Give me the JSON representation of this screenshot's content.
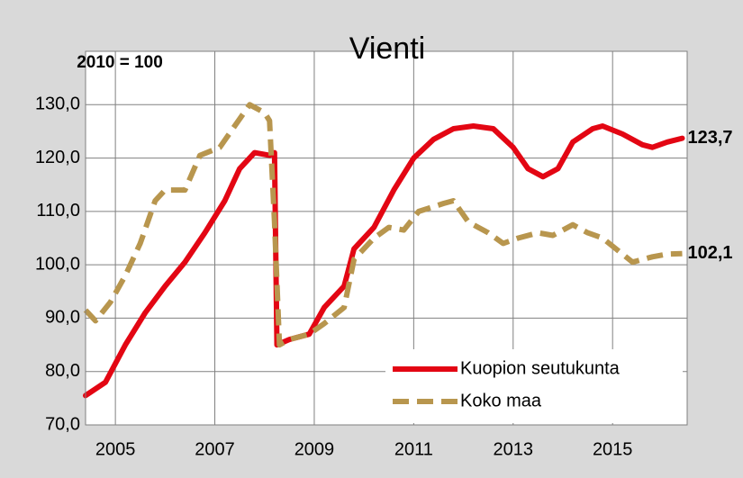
{
  "chart_data": {
    "type": "line",
    "title": "Vienti",
    "annotation": "2010 = 100",
    "xlim": [
      2004.4,
      2016.5
    ],
    "xticks": [
      2005,
      2007,
      2009,
      2011,
      2013,
      2015
    ],
    "ylim": [
      70,
      140
    ],
    "yticks": [
      {
        "value": 70,
        "label": "70,0"
      },
      {
        "value": 80,
        "label": "80,0"
      },
      {
        "value": 90,
        "label": "90,0"
      },
      {
        "value": 100,
        "label": "100,0"
      },
      {
        "value": 110,
        "label": "110,0"
      },
      {
        "value": 120,
        "label": "120,0"
      },
      {
        "value": 130,
        "label": "130,0"
      }
    ],
    "grid": true,
    "legend": "lower right",
    "series": [
      {
        "name": "Kuopion seutukunta",
        "color": "#e30613",
        "dash": false,
        "end_label": "123,7",
        "x": [
          2004.4,
          2004.8,
          2005.2,
          2005.6,
          2006.0,
          2006.4,
          2006.8,
          2007.2,
          2007.5,
          2007.8,
          2008.1,
          2008.2,
          2008.25,
          2008.5,
          2008.9,
          2009.2,
          2009.6,
          2009.8,
          2010.2,
          2010.6,
          2011.0,
          2011.4,
          2011.8,
          2012.2,
          2012.6,
          2013.0,
          2013.3,
          2013.6,
          2013.9,
          2014.2,
          2014.6,
          2014.8,
          2015.2,
          2015.6,
          2015.8,
          2016.1,
          2016.4
        ],
        "values": [
          75.5,
          78,
          85,
          91,
          96,
          100.5,
          106,
          112,
          118,
          121,
          120.5,
          121,
          85,
          86,
          87,
          92,
          96,
          103,
          107,
          114,
          120,
          123.5,
          125.5,
          126,
          125.5,
          122,
          118,
          116.5,
          118,
          123,
          125.5,
          126,
          124.5,
          122.5,
          122,
          123,
          123.7
        ]
      },
      {
        "name": "Koko maa",
        "color": "#b8964e",
        "dash": true,
        "end_label": "102,1",
        "x": [
          2004.4,
          2004.6,
          2004.9,
          2005.2,
          2005.5,
          2005.8,
          2006.0,
          2006.4,
          2006.7,
          2007.1,
          2007.4,
          2007.7,
          2008.0,
          2008.1,
          2008.2,
          2008.3,
          2008.5,
          2008.9,
          2009.2,
          2009.6,
          2009.8,
          2010.2,
          2010.5,
          2010.8,
          2011.1,
          2011.6,
          2011.8,
          2012.1,
          2012.5,
          2012.8,
          2013.1,
          2013.5,
          2013.8,
          2014.2,
          2014.5,
          2014.8,
          2015.2,
          2015.4,
          2015.8,
          2016.1,
          2016.4
        ],
        "values": [
          91.5,
          89.5,
          93,
          98,
          104,
          112,
          114,
          114,
          120.5,
          122,
          126,
          130,
          128.5,
          127,
          108,
          85,
          86,
          87,
          89,
          92,
          101,
          105,
          107,
          106.5,
          110,
          111.5,
          112,
          108,
          106,
          104,
          105,
          106,
          105.5,
          107.5,
          106,
          105,
          102,
          100.5,
          101.5,
          102,
          102.1
        ]
      }
    ]
  }
}
